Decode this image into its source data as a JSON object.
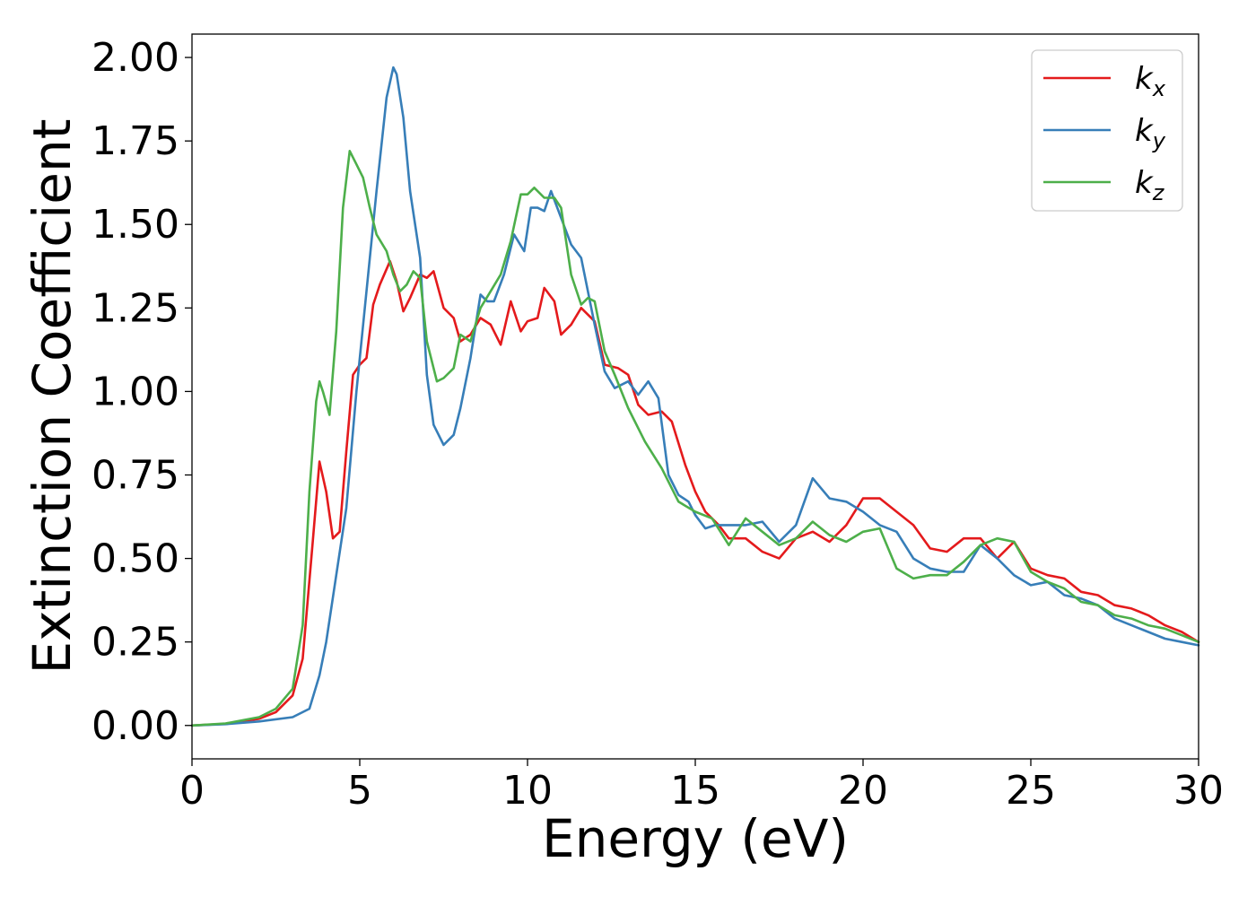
{
  "chart_data": {
    "type": "line",
    "xlabel": "Energy (eV)",
    "ylabel": "Extinction Coefficient",
    "xlim": [
      0,
      30
    ],
    "ylim": [
      -0.1,
      2.07
    ],
    "xticks": [
      0,
      5,
      10,
      15,
      20,
      25,
      30
    ],
    "xtick_labels": [
      "0",
      "5",
      "10",
      "15",
      "20",
      "25",
      "30"
    ],
    "yticks": [
      0,
      0.25,
      0.5,
      0.75,
      1.0,
      1.25,
      1.5,
      1.75,
      2.0
    ],
    "ytick_labels": [
      "0.00",
      "0.25",
      "0.50",
      "0.75",
      "1.00",
      "1.25",
      "1.50",
      "1.75",
      "2.00"
    ],
    "grid": false,
    "legend_position": "top-right",
    "series": [
      {
        "name": "k_x",
        "label_base": "k",
        "label_sub": "x",
        "color": "#e41a1c",
        "x": [
          0,
          1,
          2,
          2.5,
          3,
          3.3,
          3.6,
          3.8,
          4.0,
          4.2,
          4.4,
          4.6,
          4.8,
          5.0,
          5.2,
          5.4,
          5.6,
          5.9,
          6.1,
          6.3,
          6.5,
          6.8,
          7.0,
          7.2,
          7.5,
          7.8,
          8.0,
          8.3,
          8.6,
          8.9,
          9.2,
          9.5,
          9.8,
          10.0,
          10.3,
          10.5,
          10.8,
          11.0,
          11.3,
          11.6,
          12.0,
          12.3,
          12.7,
          13.0,
          13.3,
          13.6,
          14.0,
          14.3,
          14.7,
          15.0,
          15.3,
          15.7,
          16.0,
          16.5,
          17.0,
          17.5,
          18.0,
          18.5,
          19.0,
          19.5,
          20.0,
          20.5,
          21.0,
          21.5,
          22.0,
          22.5,
          23.0,
          23.5,
          24.0,
          24.5,
          25.0,
          25.5,
          26.0,
          26.5,
          27.0,
          27.5,
          28.0,
          28.5,
          29.0,
          29.5,
          30.0
        ],
        "y": [
          0.0,
          0.005,
          0.02,
          0.04,
          0.09,
          0.2,
          0.55,
          0.79,
          0.7,
          0.56,
          0.58,
          0.82,
          1.05,
          1.08,
          1.1,
          1.26,
          1.32,
          1.39,
          1.33,
          1.24,
          1.28,
          1.35,
          1.34,
          1.36,
          1.25,
          1.22,
          1.15,
          1.17,
          1.22,
          1.2,
          1.14,
          1.27,
          1.18,
          1.21,
          1.22,
          1.31,
          1.27,
          1.17,
          1.2,
          1.25,
          1.21,
          1.08,
          1.07,
          1.05,
          0.96,
          0.93,
          0.94,
          0.91,
          0.78,
          0.7,
          0.64,
          0.6,
          0.56,
          0.56,
          0.52,
          0.5,
          0.56,
          0.58,
          0.55,
          0.6,
          0.68,
          0.68,
          0.64,
          0.6,
          0.53,
          0.52,
          0.56,
          0.56,
          0.5,
          0.55,
          0.47,
          0.45,
          0.44,
          0.4,
          0.39,
          0.36,
          0.35,
          0.33,
          0.3,
          0.28,
          0.25
        ]
      },
      {
        "name": "k_y",
        "label_base": "k",
        "label_sub": "y",
        "color": "#377eb8",
        "x": [
          0,
          1,
          2,
          3,
          3.5,
          3.8,
          4.0,
          4.3,
          4.6,
          4.9,
          5.2,
          5.5,
          5.8,
          6.0,
          6.1,
          6.3,
          6.5,
          6.8,
          7.0,
          7.2,
          7.5,
          7.8,
          8.0,
          8.3,
          8.6,
          8.8,
          9.0,
          9.3,
          9.6,
          9.9,
          10.1,
          10.3,
          10.5,
          10.7,
          11.0,
          11.3,
          11.6,
          12.0,
          12.3,
          12.6,
          13.0,
          13.3,
          13.6,
          13.9,
          14.2,
          14.5,
          14.8,
          15.0,
          15.3,
          15.6,
          16.0,
          16.5,
          17.0,
          17.5,
          18.0,
          18.5,
          19.0,
          19.5,
          20.0,
          20.5,
          21.0,
          21.5,
          22.0,
          22.5,
          23.0,
          23.5,
          24.0,
          24.5,
          25.0,
          25.5,
          26.0,
          26.5,
          27.0,
          27.5,
          28.0,
          28.5,
          29.0,
          29.5,
          30.0
        ],
        "y": [
          0.0,
          0.004,
          0.012,
          0.025,
          0.05,
          0.15,
          0.25,
          0.45,
          0.65,
          1.0,
          1.3,
          1.6,
          1.88,
          1.97,
          1.95,
          1.82,
          1.6,
          1.4,
          1.05,
          0.9,
          0.84,
          0.87,
          0.95,
          1.1,
          1.29,
          1.27,
          1.27,
          1.35,
          1.47,
          1.42,
          1.55,
          1.55,
          1.54,
          1.6,
          1.52,
          1.44,
          1.4,
          1.2,
          1.06,
          1.01,
          1.03,
          0.99,
          1.03,
          0.98,
          0.75,
          0.69,
          0.67,
          0.63,
          0.59,
          0.6,
          0.6,
          0.6,
          0.61,
          0.55,
          0.6,
          0.74,
          0.68,
          0.67,
          0.64,
          0.6,
          0.58,
          0.5,
          0.47,
          0.46,
          0.46,
          0.54,
          0.5,
          0.45,
          0.42,
          0.43,
          0.39,
          0.38,
          0.36,
          0.32,
          0.3,
          0.28,
          0.26,
          0.25,
          0.24
        ]
      },
      {
        "name": "k_z",
        "label_base": "k",
        "label_sub": "z",
        "color": "#4daf4a",
        "x": [
          0,
          1,
          2,
          2.5,
          3,
          3.3,
          3.5,
          3.7,
          3.8,
          3.9,
          4.1,
          4.3,
          4.5,
          4.7,
          4.9,
          5.1,
          5.3,
          5.5,
          5.8,
          6.0,
          6.2,
          6.4,
          6.6,
          6.8,
          7.0,
          7.3,
          7.5,
          7.8,
          8.0,
          8.3,
          8.6,
          8.9,
          9.2,
          9.5,
          9.8,
          10.0,
          10.2,
          10.5,
          10.8,
          11.0,
          11.3,
          11.6,
          11.8,
          12.0,
          12.3,
          12.6,
          13.0,
          13.5,
          14.0,
          14.5,
          15.0,
          15.5,
          16.0,
          16.5,
          17.0,
          17.5,
          18.0,
          18.5,
          19.0,
          19.5,
          20.0,
          20.5,
          21.0,
          21.5,
          22.0,
          22.5,
          23.0,
          23.5,
          24.0,
          24.5,
          25.0,
          25.5,
          26.0,
          26.5,
          27.0,
          27.5,
          28.0,
          28.5,
          29.0,
          29.5,
          30.0
        ],
        "y": [
          0.0,
          0.006,
          0.025,
          0.05,
          0.11,
          0.3,
          0.7,
          0.97,
          1.03,
          1.0,
          0.93,
          1.18,
          1.55,
          1.72,
          1.68,
          1.64,
          1.55,
          1.47,
          1.42,
          1.35,
          1.3,
          1.32,
          1.36,
          1.34,
          1.15,
          1.03,
          1.04,
          1.07,
          1.17,
          1.15,
          1.25,
          1.3,
          1.35,
          1.45,
          1.59,
          1.59,
          1.61,
          1.58,
          1.58,
          1.55,
          1.35,
          1.26,
          1.28,
          1.27,
          1.12,
          1.05,
          0.95,
          0.85,
          0.77,
          0.67,
          0.64,
          0.62,
          0.54,
          0.62,
          0.58,
          0.54,
          0.56,
          0.61,
          0.57,
          0.55,
          0.58,
          0.59,
          0.47,
          0.44,
          0.45,
          0.45,
          0.49,
          0.54,
          0.56,
          0.55,
          0.46,
          0.43,
          0.41,
          0.37,
          0.36,
          0.33,
          0.32,
          0.3,
          0.29,
          0.27,
          0.25
        ]
      }
    ]
  }
}
